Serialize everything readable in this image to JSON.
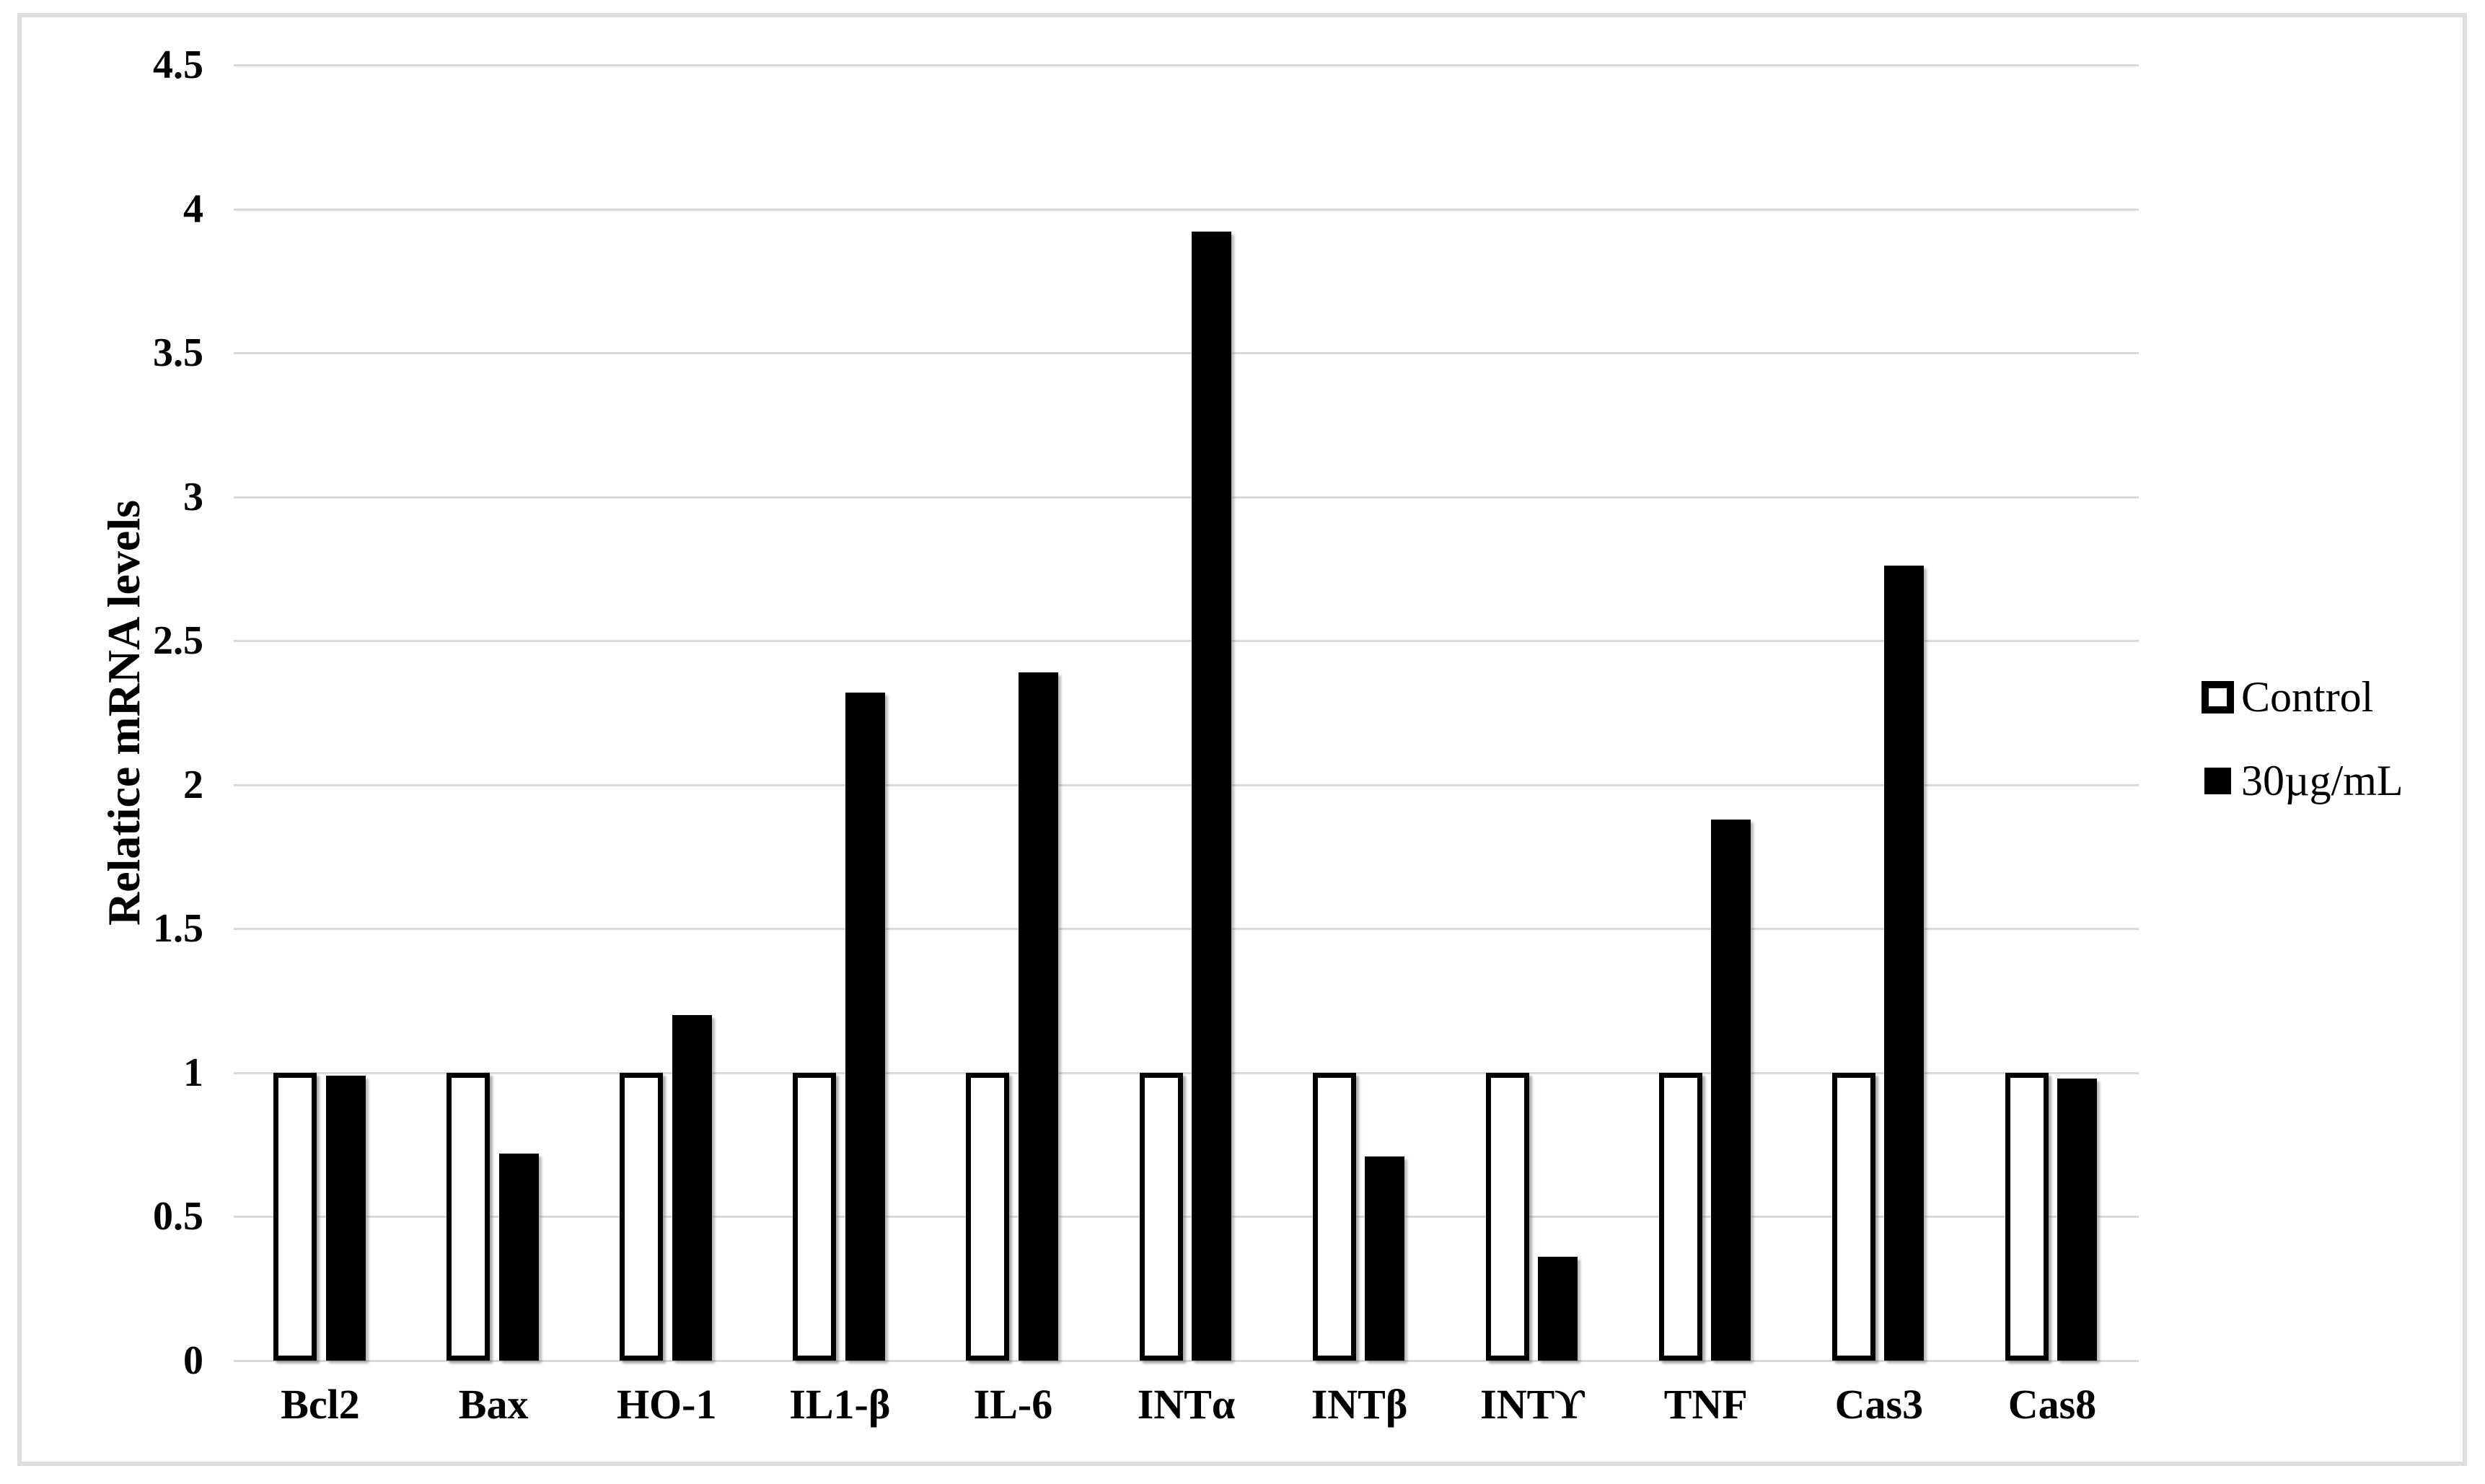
{
  "figure": {
    "background": "#ffffff",
    "border_color": "#dddddd"
  },
  "chart_data": {
    "type": "bar",
    "title": "",
    "xlabel": "",
    "ylabel": "Relatice mRNA levels",
    "ylim": [
      0,
      4.5
    ],
    "yticks": [
      0,
      0.5,
      1,
      1.5,
      2,
      2.5,
      3,
      3.5,
      4,
      4.5
    ],
    "grid": "horizontal",
    "gridline_color": "#d9d9d9",
    "axis_line_color": "#d9d9d9",
    "text_color": "#000000",
    "legend_position": "right-middle",
    "categories": [
      "Bcl2",
      "Bax",
      "HO-1",
      "IL1-β",
      "IL-6",
      "INTα",
      "INTβ",
      "INTϒ",
      "TNF",
      "Cas3",
      "Cas8"
    ],
    "series": [
      {
        "name": "Control",
        "swatch": "outlined-square",
        "fill": "#ffffff",
        "border": "#000000",
        "values": [
          1.0,
          1.0,
          1.0,
          1.0,
          1.0,
          1.0,
          1.0,
          1.0,
          1.0,
          1.0,
          1.0
        ]
      },
      {
        "name": "30µg/mL",
        "swatch": "filled-square",
        "fill": "#000000",
        "border": "#000000",
        "values": [
          0.99,
          0.72,
          1.2,
          2.32,
          2.39,
          3.92,
          0.71,
          0.36,
          1.88,
          2.76,
          0.98
        ]
      }
    ]
  }
}
